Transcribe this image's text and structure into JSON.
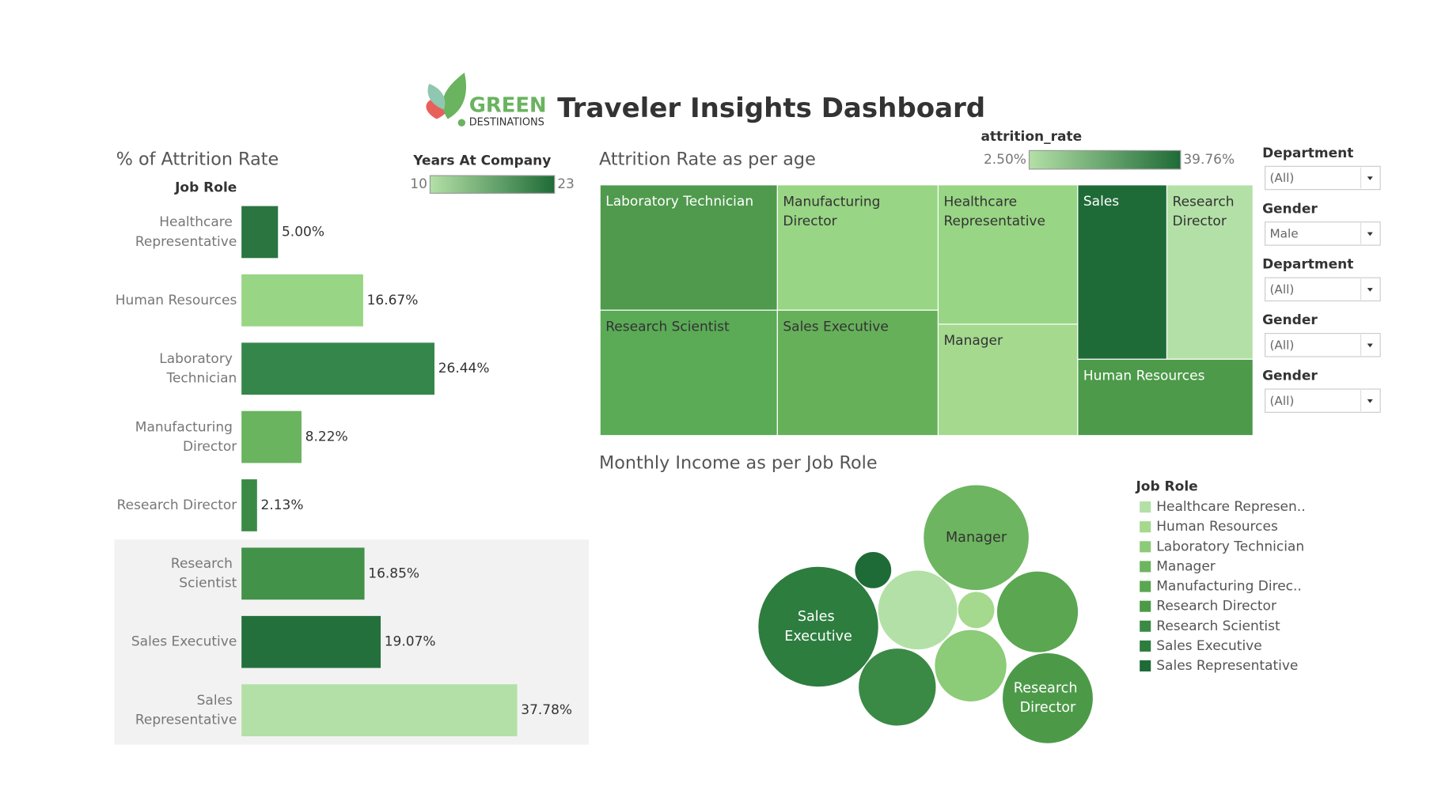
{
  "header": {
    "logo_word": "GREEN",
    "logo_sub": "DESTINATIONS",
    "title": "Traveler Insights Dashboard"
  },
  "chart_data": [
    {
      "type": "bar",
      "orientation": "horizontal",
      "title": "% of Attrition Rate",
      "y_label": "Job Role",
      "categories": [
        "Healthcare Representative",
        "Human Resources",
        "Laboratory Technician",
        "Manufacturing Director",
        "Research Director",
        "Research Scientist",
        "Sales Executive",
        "Sales Representative"
      ],
      "values": [
        5.0,
        16.67,
        26.44,
        8.22,
        2.13,
        16.85,
        19.07,
        37.78
      ],
      "value_labels": [
        "5.00%",
        "16.67%",
        "26.44%",
        "8.22%",
        "2.13%",
        "16.85%",
        "19.07%",
        "37.78%"
      ],
      "colors": [
        "#2a7540",
        "#98d584",
        "#35864a",
        "#6ab35f",
        "#3a8a45",
        "#43924a",
        "#24703c",
        "#b3e0a6"
      ],
      "xlim": [
        0,
        47.6
      ],
      "colorbar": {
        "title": "Years At Company",
        "range": [
          10,
          23
        ],
        "colors": [
          "#b3e0a6",
          "#1f6b37"
        ]
      }
    },
    {
      "type": "treemap",
      "title": "Attrition Rate as per age",
      "categories": [
        "Laboratory Technician",
        "Manufacturing Director",
        "Healthcare Representative",
        "Sales",
        "Research Director",
        "Research Scientist",
        "Sales Executive",
        "Manager",
        "Human Resources"
      ],
      "values": [
        256,
        232,
        224,
        179,
        173,
        256,
        232,
        179,
        154
      ],
      "colors": [
        "#4f9a4d",
        "#98d584",
        "#98d584",
        "#1f6b37",
        "#b3e0a6",
        "#5aaa56",
        "#66b05a",
        "#a4d98e",
        "#4d9a4a"
      ],
      "colorbar": {
        "title": "attrition_rate",
        "range": [
          {
            "value": 2.5,
            "label": "2.50%"
          },
          {
            "value": 39.76,
            "label": "39.76%"
          }
        ],
        "colors": [
          "#b3e0a6",
          "#1f6b37"
        ]
      }
    },
    {
      "type": "bubble",
      "title": "Monthly Income as per Job Role",
      "legend_title": "Job Role",
      "categories": [
        "Healthcare Represen..",
        "Human Resources",
        "Laboratory Technician",
        "Manager",
        "Manufacturing Direc..",
        "Research Director",
        "Research Scientist",
        "Sales Executive",
        "Sales Representative"
      ],
      "bubble_labels": [
        null,
        null,
        null,
        "Manager",
        null,
        "Research Director",
        null,
        "Sales Executive",
        null
      ],
      "values": [
        7396,
        1600,
        6084,
        12996,
        7744,
        9604,
        7056,
        16900,
        1600
      ],
      "colors": [
        "#b3e0a6",
        "#a4d98e",
        "#8ccb78",
        "#6db560",
        "#5aa651",
        "#4c9a48",
        "#3a8a45",
        "#2d7d3f",
        "#1f6b37"
      ]
    }
  ],
  "filters": [
    {
      "label": "Department",
      "value": "(All)"
    },
    {
      "label": "Gender",
      "value": "Male"
    },
    {
      "label": "Department",
      "value": "(All)"
    },
    {
      "label": "Gender",
      "value": "(All)"
    },
    {
      "label": "Gender",
      "value": "(All)"
    }
  ]
}
